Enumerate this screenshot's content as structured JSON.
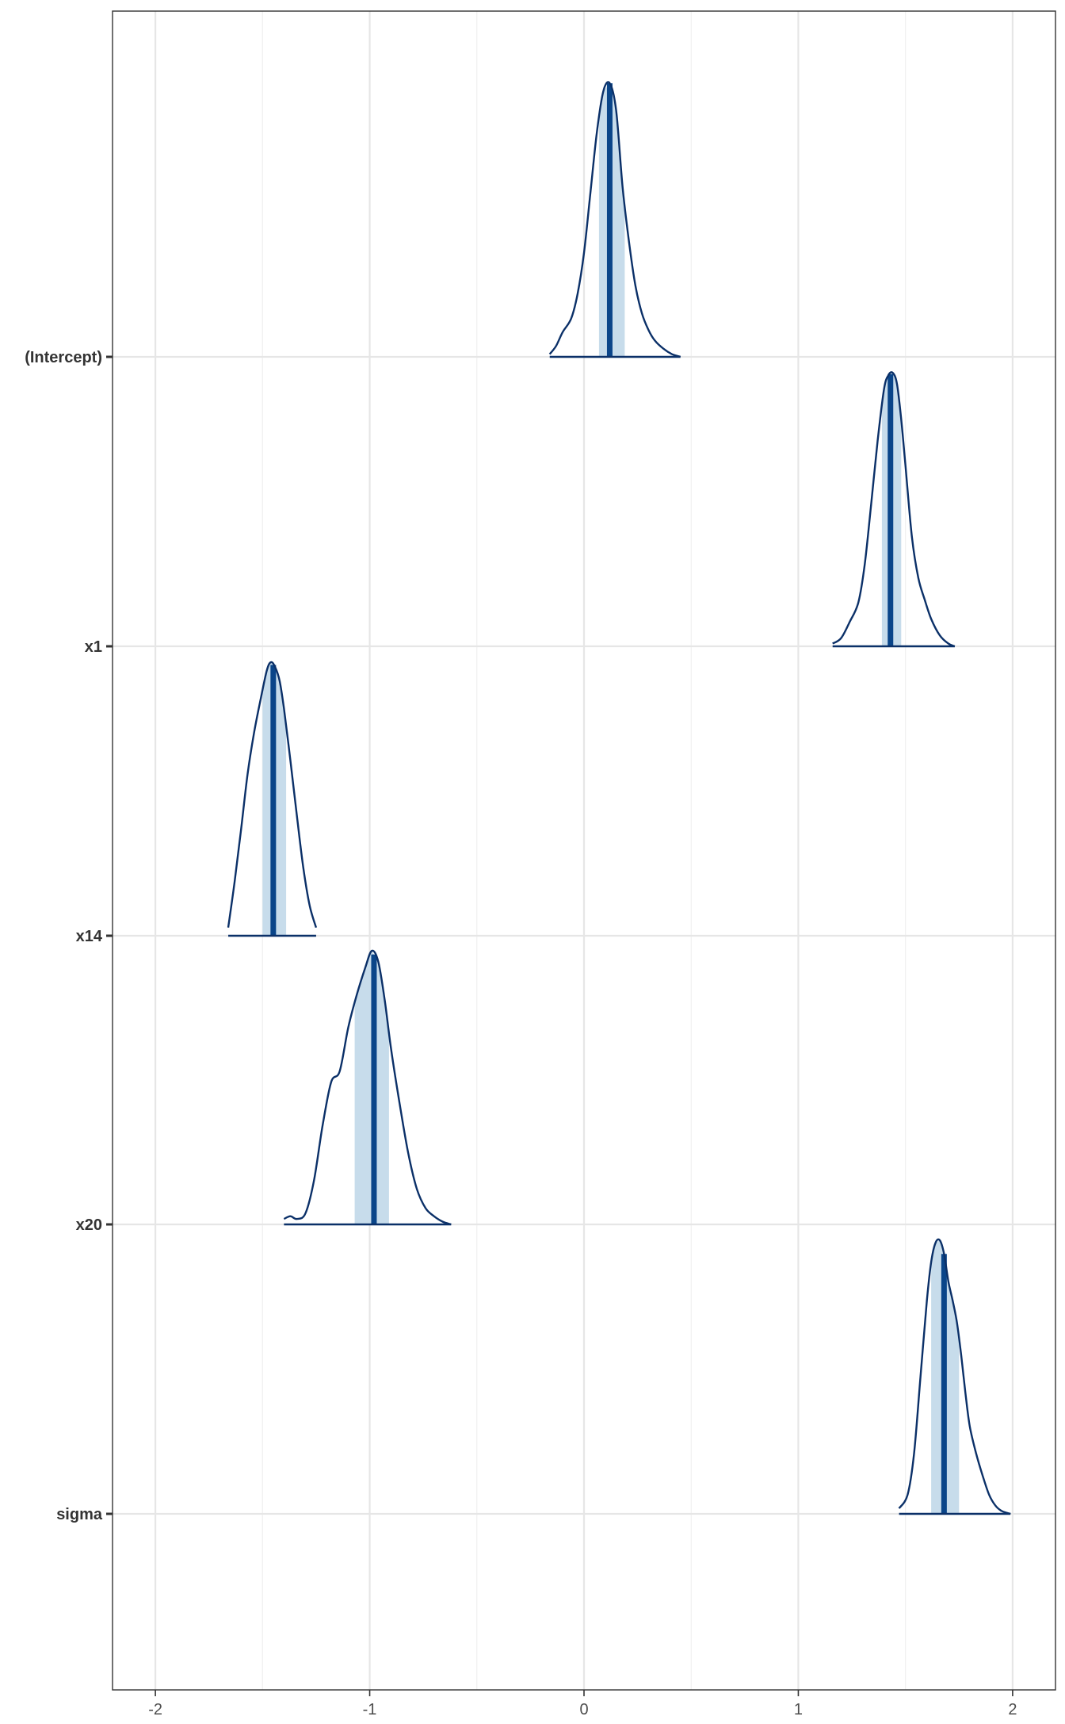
{
  "chart_data": {
    "type": "area",
    "description_kind": "ridgeline posterior densities",
    "xlim": [
      -2.2,
      2.2
    ],
    "x_ticks": [
      -2,
      -1,
      0,
      1,
      2
    ],
    "x_tick_labels": [
      "-2",
      "-1",
      "0",
      "1",
      "2"
    ],
    "y_categories": [
      "(Intercept)",
      "x1",
      "x14",
      "x20",
      "sigma"
    ],
    "grid": true,
    "colors": {
      "outline": "#0b3068",
      "median": "#0a4589",
      "interval_fill": "#c7dceb",
      "grid": "#e6e6e6",
      "panel_border": "#333333"
    },
    "series": [
      {
        "name": "(Intercept)",
        "median": 0.12,
        "interval": [
          0.07,
          0.19
        ],
        "density_x": [
          -0.16,
          -0.13,
          -0.1,
          -0.06,
          -0.03,
          0.0,
          0.03,
          0.06,
          0.09,
          0.12,
          0.15,
          0.18,
          0.21,
          0.24,
          0.27,
          0.3,
          0.33,
          0.37,
          0.41,
          0.45
        ],
        "density_y": [
          0.01,
          0.04,
          0.09,
          0.14,
          0.23,
          0.38,
          0.6,
          0.82,
          0.97,
          1.0,
          0.9,
          0.62,
          0.42,
          0.26,
          0.16,
          0.1,
          0.06,
          0.03,
          0.01,
          0.0
        ]
      },
      {
        "name": "x1",
        "median": 1.43,
        "interval": [
          1.39,
          1.48
        ],
        "density_x": [
          1.16,
          1.2,
          1.24,
          1.28,
          1.31,
          1.34,
          1.37,
          1.4,
          1.42,
          1.44,
          1.46,
          1.48,
          1.5,
          1.53,
          1.56,
          1.59,
          1.62,
          1.66,
          1.7,
          1.73
        ],
        "density_y": [
          0.01,
          0.03,
          0.09,
          0.16,
          0.3,
          0.52,
          0.75,
          0.94,
          0.99,
          1.0,
          0.96,
          0.83,
          0.66,
          0.4,
          0.25,
          0.17,
          0.1,
          0.04,
          0.01,
          0.0
        ]
      },
      {
        "name": "x14",
        "median": -1.45,
        "interval": [
          -1.5,
          -1.39
        ],
        "density_x": [
          -1.66,
          -1.63,
          -1.6,
          -1.57,
          -1.54,
          -1.51,
          -1.48,
          -1.46,
          -1.44,
          -1.42,
          -1.4,
          -1.37,
          -1.34,
          -1.31,
          -1.28,
          -1.25
        ],
        "density_y": [
          0.03,
          0.2,
          0.39,
          0.59,
          0.74,
          0.86,
          0.97,
          1.0,
          0.98,
          0.93,
          0.83,
          0.64,
          0.44,
          0.25,
          0.11,
          0.03
        ]
      },
      {
        "name": "x20",
        "median": -0.98,
        "interval": [
          -1.07,
          -0.91
        ],
        "density_x": [
          -1.4,
          -1.37,
          -1.34,
          -1.3,
          -1.26,
          -1.22,
          -1.18,
          -1.14,
          -1.1,
          -1.06,
          -1.02,
          -0.99,
          -0.96,
          -0.93,
          -0.9,
          -0.86,
          -0.82,
          -0.78,
          -0.74,
          -0.7,
          -0.66,
          -0.62
        ],
        "density_y": [
          0.02,
          0.03,
          0.02,
          0.04,
          0.16,
          0.36,
          0.52,
          0.56,
          0.72,
          0.84,
          0.94,
          1.0,
          0.96,
          0.82,
          0.64,
          0.44,
          0.26,
          0.13,
          0.06,
          0.03,
          0.01,
          0.0
        ]
      },
      {
        "name": "sigma",
        "median": 1.68,
        "interval": [
          1.62,
          1.75
        ],
        "density_x": [
          1.47,
          1.51,
          1.54,
          1.57,
          1.6,
          1.62,
          1.64,
          1.66,
          1.68,
          1.7,
          1.72,
          1.74,
          1.76,
          1.78,
          1.8,
          1.83,
          1.86,
          1.89,
          1.92,
          1.95,
          1.99
        ],
        "density_y": [
          0.02,
          0.07,
          0.22,
          0.5,
          0.78,
          0.92,
          0.99,
          1.0,
          0.95,
          0.85,
          0.78,
          0.7,
          0.58,
          0.44,
          0.32,
          0.22,
          0.14,
          0.07,
          0.03,
          0.01,
          0.0
        ]
      }
    ]
  }
}
